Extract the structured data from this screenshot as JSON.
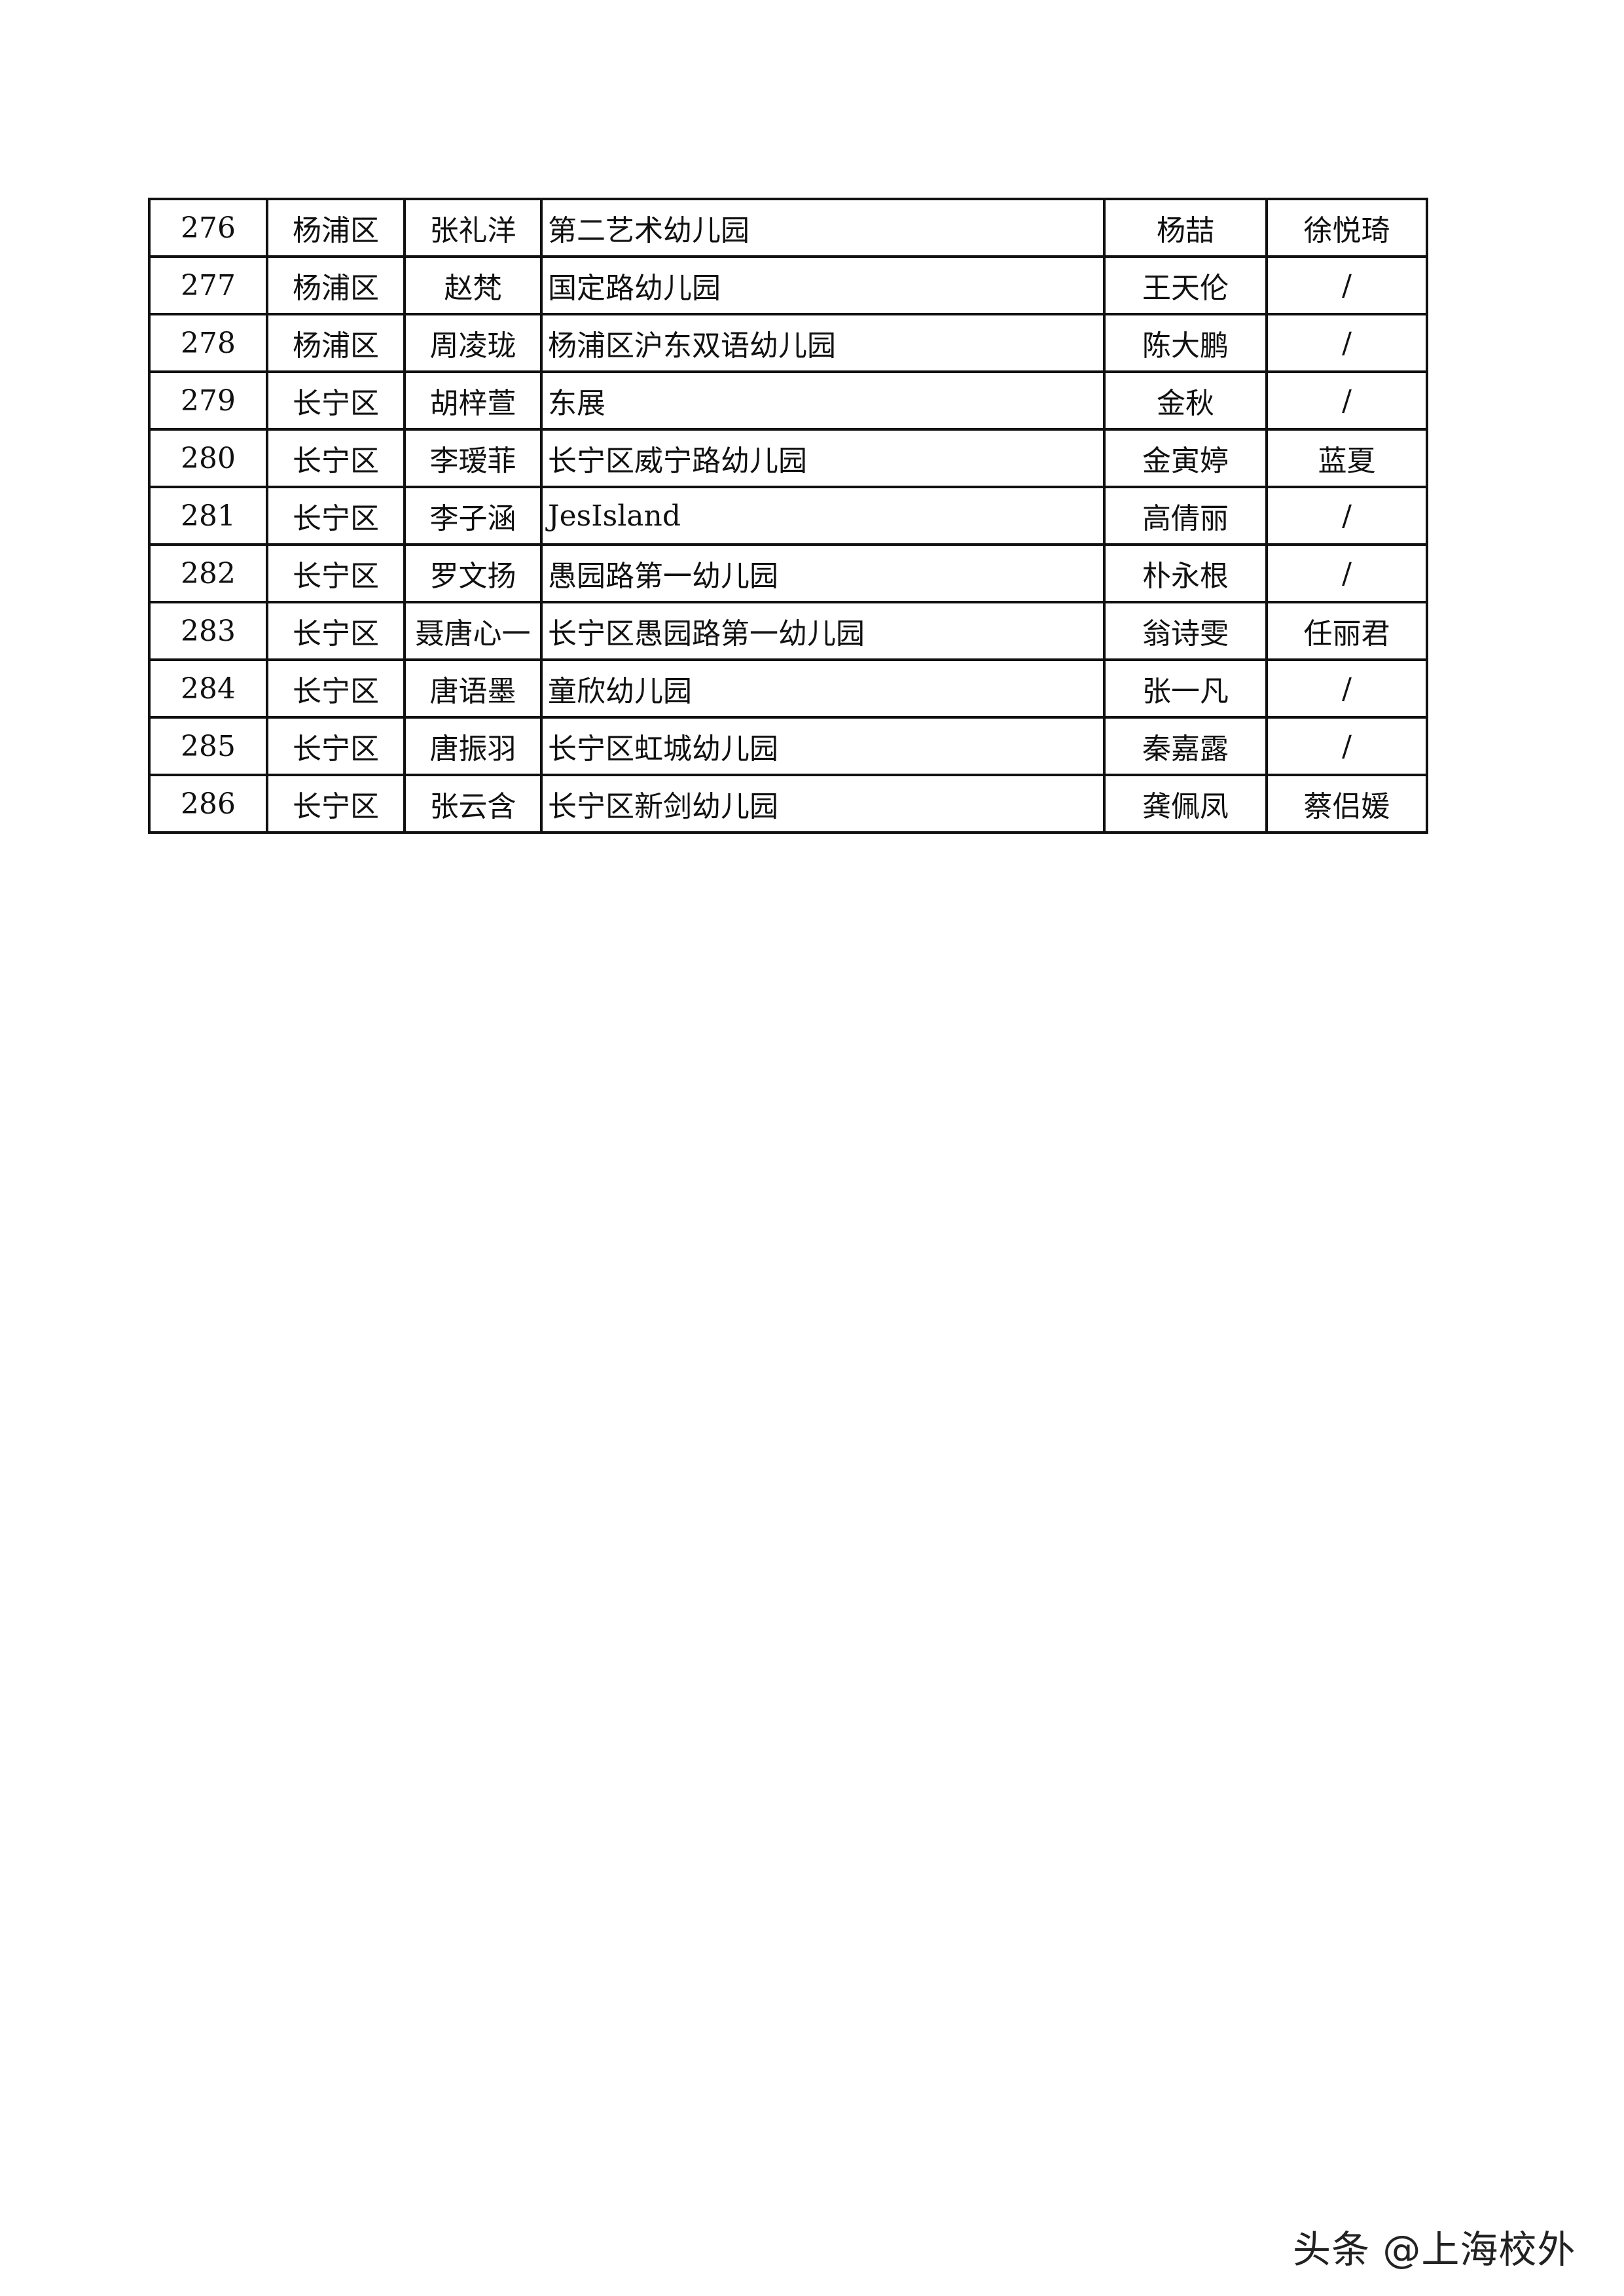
{
  "rows": [
    {
      "no": "276",
      "district": "杨浦区",
      "name": "张礼洋",
      "school": "第二艺术幼儿园",
      "teacher": "杨喆",
      "teacher2": "徐悦琦"
    },
    {
      "no": "277",
      "district": "杨浦区",
      "name": "赵梵",
      "school": "国定路幼儿园",
      "teacher": "王天伦",
      "teacher2": "/"
    },
    {
      "no": "278",
      "district": "杨浦区",
      "name": "周凌珑",
      "school": "杨浦区沪东双语幼儿园",
      "teacher": "陈大鹏",
      "teacher2": "/"
    },
    {
      "no": "279",
      "district": "长宁区",
      "name": "胡梓萱",
      "school": "东展",
      "teacher": "金秋",
      "teacher2": "/"
    },
    {
      "no": "280",
      "district": "长宁区",
      "name": "李瑷菲",
      "school": "长宁区威宁路幼儿园",
      "teacher": "金寅婷",
      "teacher2": "蓝夏"
    },
    {
      "no": "281",
      "district": "长宁区",
      "name": "李子涵",
      "school": "JesIsland",
      "teacher": "高倩丽",
      "teacher2": "/"
    },
    {
      "no": "282",
      "district": "长宁区",
      "name": "罗文扬",
      "school": "愚园路第一幼儿园",
      "teacher": "朴永根",
      "teacher2": "/"
    },
    {
      "no": "283",
      "district": "长宁区",
      "name": "聂唐心一",
      "school": "长宁区愚园路第一幼儿园",
      "teacher": "翁诗雯",
      "teacher2": "任丽君"
    },
    {
      "no": "284",
      "district": "长宁区",
      "name": "唐语墨",
      "school": "童欣幼儿园",
      "teacher": "张一凡",
      "teacher2": "/"
    },
    {
      "no": "285",
      "district": "长宁区",
      "name": "唐振羽",
      "school": "长宁区虹城幼儿园",
      "teacher": "秦嘉露",
      "teacher2": "/"
    },
    {
      "no": "286",
      "district": "长宁区",
      "name": "张云含",
      "school": "长宁区新剑幼儿园",
      "teacher": "龚佩凤",
      "teacher2": "蔡侣媛"
    }
  ],
  "watermark": "头条 @上海校外"
}
